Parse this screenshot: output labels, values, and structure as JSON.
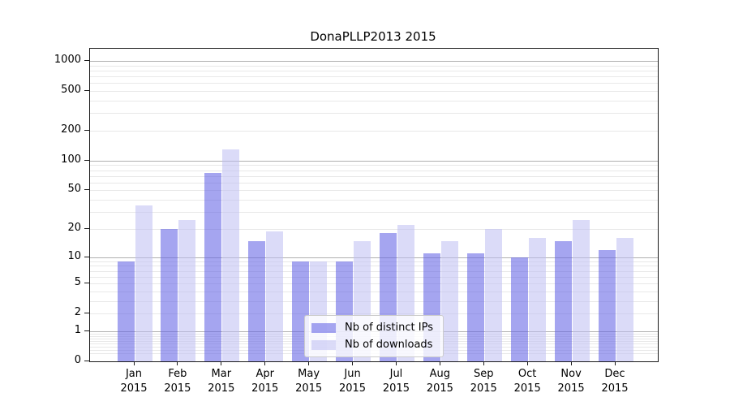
{
  "chart_data": {
    "type": "bar",
    "title": "DonaPLLP2013 2015",
    "y_scale": "log10(1+x)",
    "months": [
      "Jan",
      "Feb",
      "Mar",
      "Apr",
      "May",
      "Jun",
      "Jul",
      "Aug",
      "Sep",
      "Oct",
      "Nov",
      "Dec"
    ],
    "year": "2015",
    "categories": [
      "Jan 2015",
      "Feb 2015",
      "Mar 2015",
      "Apr 2015",
      "May 2015",
      "Jun 2015",
      "Jul 2015",
      "Aug 2015",
      "Sep 2015",
      "Oct 2015",
      "Nov 2015",
      "Dec 2015"
    ],
    "yticks": [
      0,
      1,
      2,
      5,
      10,
      20,
      50,
      100,
      200,
      500,
      1000
    ],
    "ylim": [
      0,
      1340
    ],
    "grid": true,
    "series": [
      {
        "name": "Nb of distinct IPs",
        "color": "#6464e6",
        "alpha": 0.58,
        "values": [
          9,
          20,
          75,
          15,
          9,
          9,
          18,
          11,
          11,
          10,
          15,
          12
        ]
      },
      {
        "name": "Nb of downloads",
        "color": "#bebef2",
        "alpha": 0.55,
        "values": [
          35,
          25,
          130,
          19,
          9,
          15,
          22,
          15,
          20,
          16,
          25,
          16
        ]
      }
    ],
    "legend": {
      "position": "lower center",
      "entries": [
        "Nb of distinct IPs",
        "Nb of downloads"
      ]
    },
    "colors": {
      "major_grid": "#b0b0b0",
      "minor_grid": "#e8e8e8",
      "spine": "#1a1a1a"
    }
  }
}
